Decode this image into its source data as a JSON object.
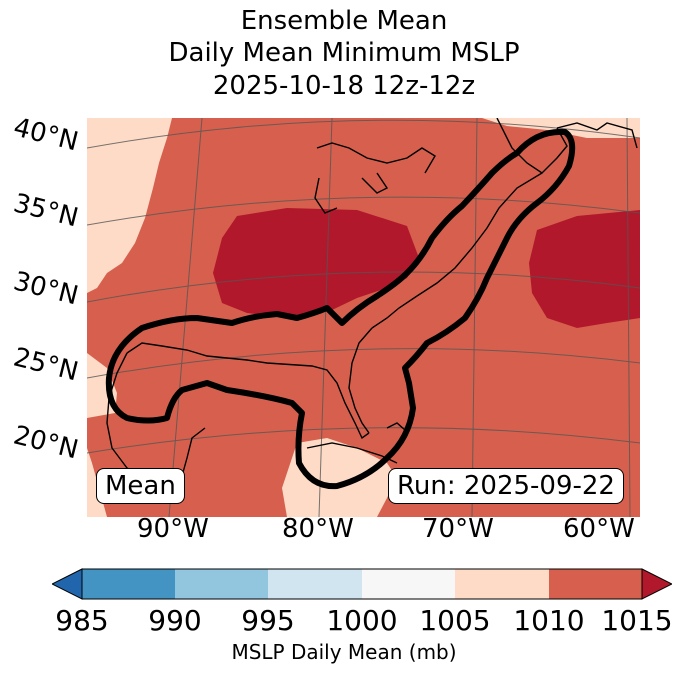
{
  "title": {
    "line1": "Ensemble Mean",
    "line2": "Daily Mean Minimum MSLP",
    "line3": "2025-10-18 12z-12z"
  },
  "map": {
    "lat_labels": [
      "40°N",
      "35°N",
      "30°N",
      "25°N",
      "20°N"
    ],
    "lon_labels": [
      "90°W",
      "80°W",
      "70°W",
      "60°W"
    ],
    "mean_label": "Mean",
    "run_label": "Run: 2025-09-22",
    "colors": {
      "c985": "#2166ac",
      "c990": "#4393c3",
      "c995": "#92c5de",
      "c1000": "#d1e5f0",
      "c1005": "#f7f7f7",
      "c1010": "#fddbc7",
      "c1015": "#d6604d",
      "over": "#b2182b",
      "contour": "#000000",
      "coast": "#000000"
    }
  },
  "colorbar": {
    "ticks": [
      "985",
      "990",
      "995",
      "1000",
      "1005",
      "1010",
      "1015"
    ],
    "label": "MSLP Daily Mean (mb)",
    "colors": [
      "#2166ac",
      "#4393c3",
      "#92c5de",
      "#d1e5f0",
      "#f7f7f7",
      "#fddbc7",
      "#d6604d",
      "#b2182b"
    ]
  }
}
